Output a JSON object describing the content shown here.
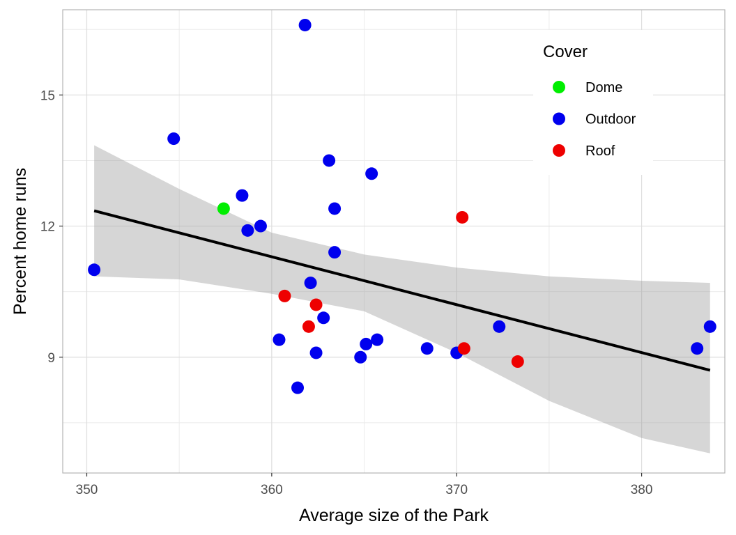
{
  "chart_data": {
    "type": "scatter",
    "title": "",
    "xlabel": "Average size of the Park",
    "ylabel": "Percent home runs",
    "xlim": [
      348.7,
      384.5
    ],
    "ylim": [
      6.35,
      16.95
    ],
    "x_ticks": [
      350,
      360,
      370,
      380
    ],
    "y_ticks": [
      9,
      12,
      15
    ],
    "grid": true,
    "legend": {
      "title": "Cover",
      "placement": "top-right",
      "entries": [
        {
          "name": "Dome",
          "color": "#00ee00"
        },
        {
          "name": "Outdoor",
          "color": "#0000ee"
        },
        {
          "name": "Roof",
          "color": "#ee0000"
        }
      ]
    },
    "colors": {
      "Dome": "#00ee00",
      "Outdoor": "#0000ee",
      "Roof": "#ee0000"
    },
    "trend": {
      "type": "linear",
      "line": [
        [
          350.4,
          12.35
        ],
        [
          383.7,
          8.7
        ]
      ],
      "band": [
        {
          "x": 350.4,
          "lower": 10.85,
          "upper": 13.85
        },
        {
          "x": 355,
          "lower": 10.78,
          "upper": 12.85
        },
        {
          "x": 360,
          "lower": 10.45,
          "upper": 11.85
        },
        {
          "x": 365,
          "lower": 10.05,
          "upper": 11.35
        },
        {
          "x": 370,
          "lower": 9.1,
          "upper": 11.05
        },
        {
          "x": 375,
          "lower": 8.0,
          "upper": 10.85
        },
        {
          "x": 380,
          "lower": 7.15,
          "upper": 10.75
        },
        {
          "x": 383.7,
          "lower": 6.8,
          "upper": 10.7
        }
      ]
    },
    "series": [
      {
        "name": "Outdoor",
        "points": [
          [
            350.4,
            11.0
          ],
          [
            354.7,
            14.0
          ],
          [
            358.4,
            12.7
          ],
          [
            358.7,
            11.9
          ],
          [
            359.4,
            12.0
          ],
          [
            360.4,
            9.4
          ],
          [
            361.4,
            8.3
          ],
          [
            361.8,
            16.6
          ],
          [
            362.1,
            10.7
          ],
          [
            362.4,
            9.1
          ],
          [
            362.8,
            9.9
          ],
          [
            363.1,
            13.5
          ],
          [
            363.4,
            11.4
          ],
          [
            363.4,
            12.4
          ],
          [
            364.8,
            9.0
          ],
          [
            365.1,
            9.3
          ],
          [
            365.4,
            13.2
          ],
          [
            365.7,
            9.4
          ],
          [
            368.4,
            9.2
          ],
          [
            370.0,
            9.1
          ],
          [
            372.3,
            9.7
          ],
          [
            383.0,
            9.2
          ],
          [
            383.7,
            9.7
          ]
        ]
      },
      {
        "name": "Dome",
        "points": [
          [
            357.4,
            12.4
          ]
        ]
      },
      {
        "name": "Roof",
        "points": [
          [
            360.7,
            10.4
          ],
          [
            362.0,
            9.7
          ],
          [
            362.4,
            10.2
          ],
          [
            370.3,
            12.2
          ],
          [
            370.4,
            9.2
          ],
          [
            373.3,
            8.9
          ]
        ]
      }
    ]
  }
}
